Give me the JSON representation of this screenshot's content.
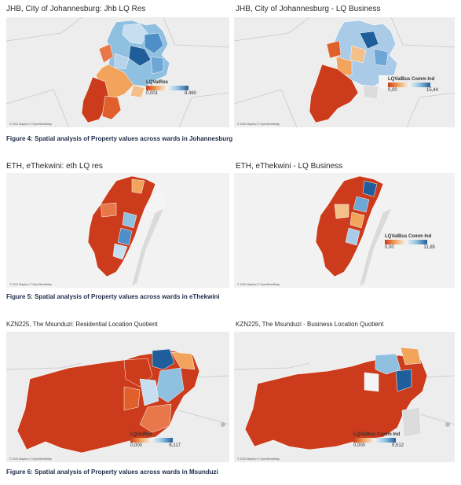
{
  "figures": [
    {
      "caption": "Figure 4:  Spatial analysis of Property values across wards in Johannesburg",
      "panels": [
        {
          "title": "JHB, City of Johannesburg:  Jhb LQ Res",
          "legend": {
            "title": "LQValRes",
            "min": "0,001",
            "max": "8,460"
          },
          "credit": "© 2021 Mapbox © OpenStreetMap"
        },
        {
          "title": "JHB, City of Johannesburg - LQ Business",
          "legend": {
            "title": "LQValBus Comm Ind",
            "min": "0,00",
            "max": "15,44"
          },
          "credit": "© 2020 Mapbox © OpenStreetMap"
        }
      ]
    },
    {
      "caption": "Figure 5:  Spatial analysis of Property values across wards in eThekwini",
      "panels": [
        {
          "title": "ETH, eThekwini:  eth LQ res",
          "legend": {
            "title": "",
            "min": "",
            "max": ""
          },
          "credit": "© 2021 Mapbox © OpenStreetMap"
        },
        {
          "title": "ETH, eThekwini - LQ Business",
          "legend": {
            "title": "LQValBus Comm Ind",
            "min": "0,00",
            "max": "11,85"
          },
          "credit": "© 2020 Mapbox © OpenStreetMap"
        }
      ]
    },
    {
      "caption": "Figure 6:  Spatial analysis of Property values across wards in Msunduzi",
      "panels": [
        {
          "title": "KZN225, The Msunduzi:  Residential Location Quotient",
          "legend": {
            "title": "LQValRes",
            "min": "0,000",
            "max": "6,117"
          },
          "credit": "© 2021 Mapbox © OpenStreetMap"
        },
        {
          "title": "KZN225, The Msunduzi - Business Location Quotient",
          "legend": {
            "title": "LQValBus Comm Ind",
            "min": "0,000",
            "max": "9,512"
          },
          "credit": "© 2020 Mapbox © OpenStreetMap"
        }
      ]
    }
  ],
  "colors": {
    "low": "#cc3b1b",
    "mid_low": "#f2a45c",
    "neutral": "#f4f4f4",
    "mid_high": "#8fc0e0",
    "high": "#1f5e9a",
    "map_bg": "#ededed",
    "caption": "#1e2a48"
  }
}
